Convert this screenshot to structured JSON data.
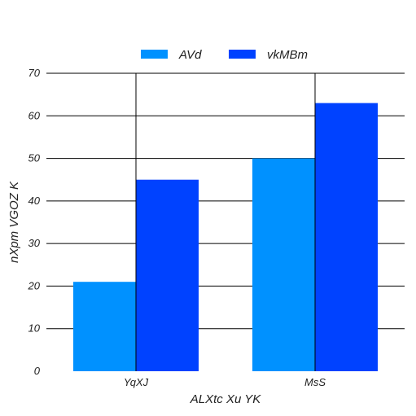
{
  "chart_data": {
    "type": "bar",
    "categories": [
      "YqXJ",
      "MsS"
    ],
    "series": [
      {
        "name": "AVd",
        "values": [
          21,
          50
        ],
        "color": "#0091ff"
      },
      {
        "name": "vkMBm",
        "values": [
          45,
          63
        ],
        "color": "#0042ff"
      }
    ],
    "xlabel": "ALXtc  Xu YK",
    "ylabel": "nXpm VGOZ K",
    "ylim": [
      0,
      70
    ],
    "yticks": [
      0,
      10,
      20,
      30,
      40,
      50,
      60,
      70
    ],
    "grid": true,
    "legend_position": "top-center"
  }
}
